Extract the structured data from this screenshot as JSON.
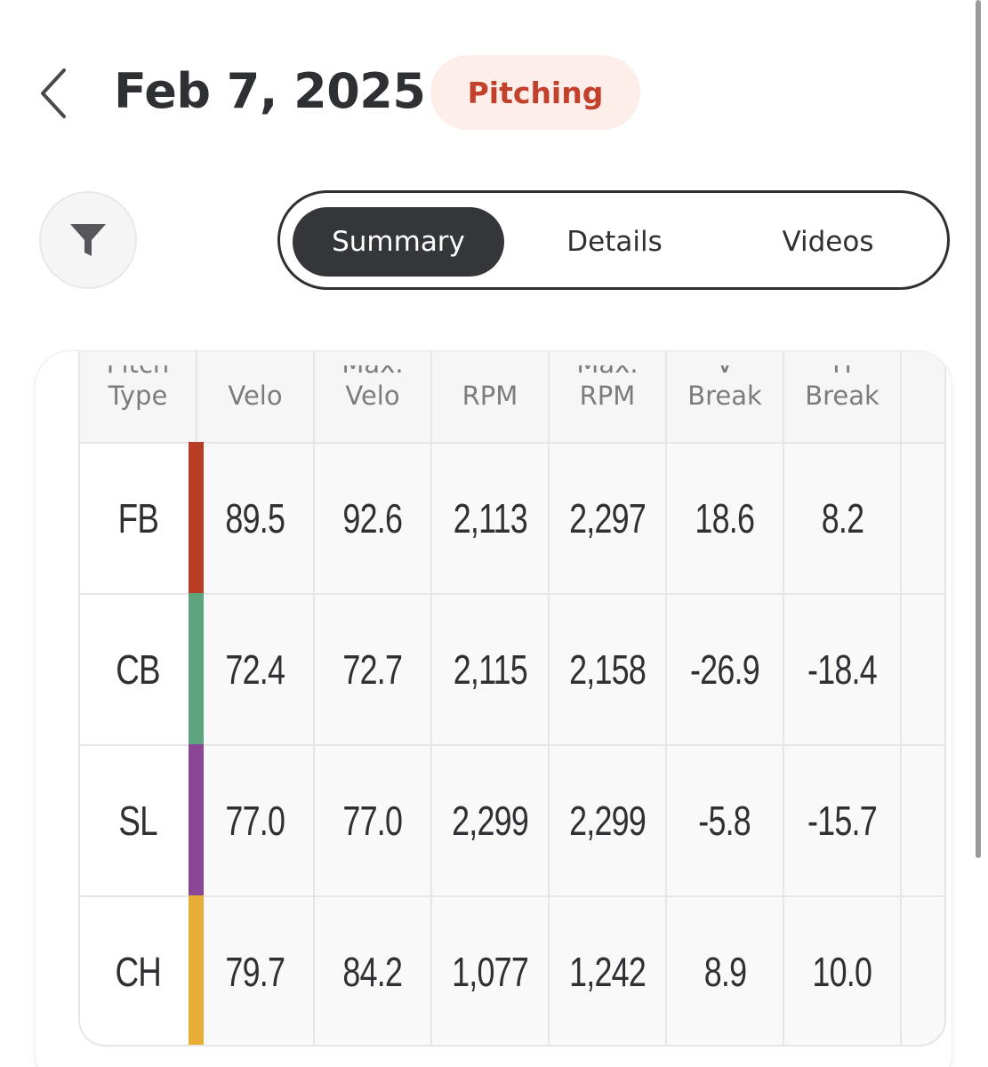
{
  "header": {
    "back_icon": "chevron-left-icon",
    "date": "Feb 7, 2025",
    "session_type": "Pitching"
  },
  "toolbar": {
    "filter_icon": "filter-icon",
    "tabs": [
      {
        "label": "Summary",
        "active": true
      },
      {
        "label": "Details",
        "active": false
      },
      {
        "label": "Videos",
        "active": false
      }
    ]
  },
  "table": {
    "columns": [
      {
        "top": "Pitch",
        "bottom": "Type"
      },
      {
        "top": "",
        "bottom": "Velo"
      },
      {
        "top": "Max.",
        "bottom": "Velo"
      },
      {
        "top": "",
        "bottom": "RPM"
      },
      {
        "top": "Max.",
        "bottom": "RPM"
      },
      {
        "top": "V",
        "bottom": "Break"
      },
      {
        "top": "H",
        "bottom": "Break"
      }
    ],
    "rows": [
      {
        "type": "FB",
        "color": "#b83d24",
        "velo": "89.5",
        "max_velo": "92.6",
        "rpm": "2,113",
        "max_rpm": "2,297",
        "v_break": "18.6",
        "h_break": "8.2"
      },
      {
        "type": "CB",
        "color": "#5ea47d",
        "velo": "72.4",
        "max_velo": "72.7",
        "rpm": "2,115",
        "max_rpm": "2,158",
        "v_break": "-26.9",
        "h_break": "-18.4"
      },
      {
        "type": "SL",
        "color": "#8a4795",
        "velo": "77.0",
        "max_velo": "77.0",
        "rpm": "2,299",
        "max_rpm": "2,299",
        "v_break": "-5.8",
        "h_break": "-15.7"
      },
      {
        "type": "CH",
        "color": "#e8ad37",
        "velo": "79.7",
        "max_velo": "84.2",
        "rpm": "1,077",
        "max_rpm": "1,242",
        "v_break": "8.9",
        "h_break": "10.0"
      }
    ]
  }
}
